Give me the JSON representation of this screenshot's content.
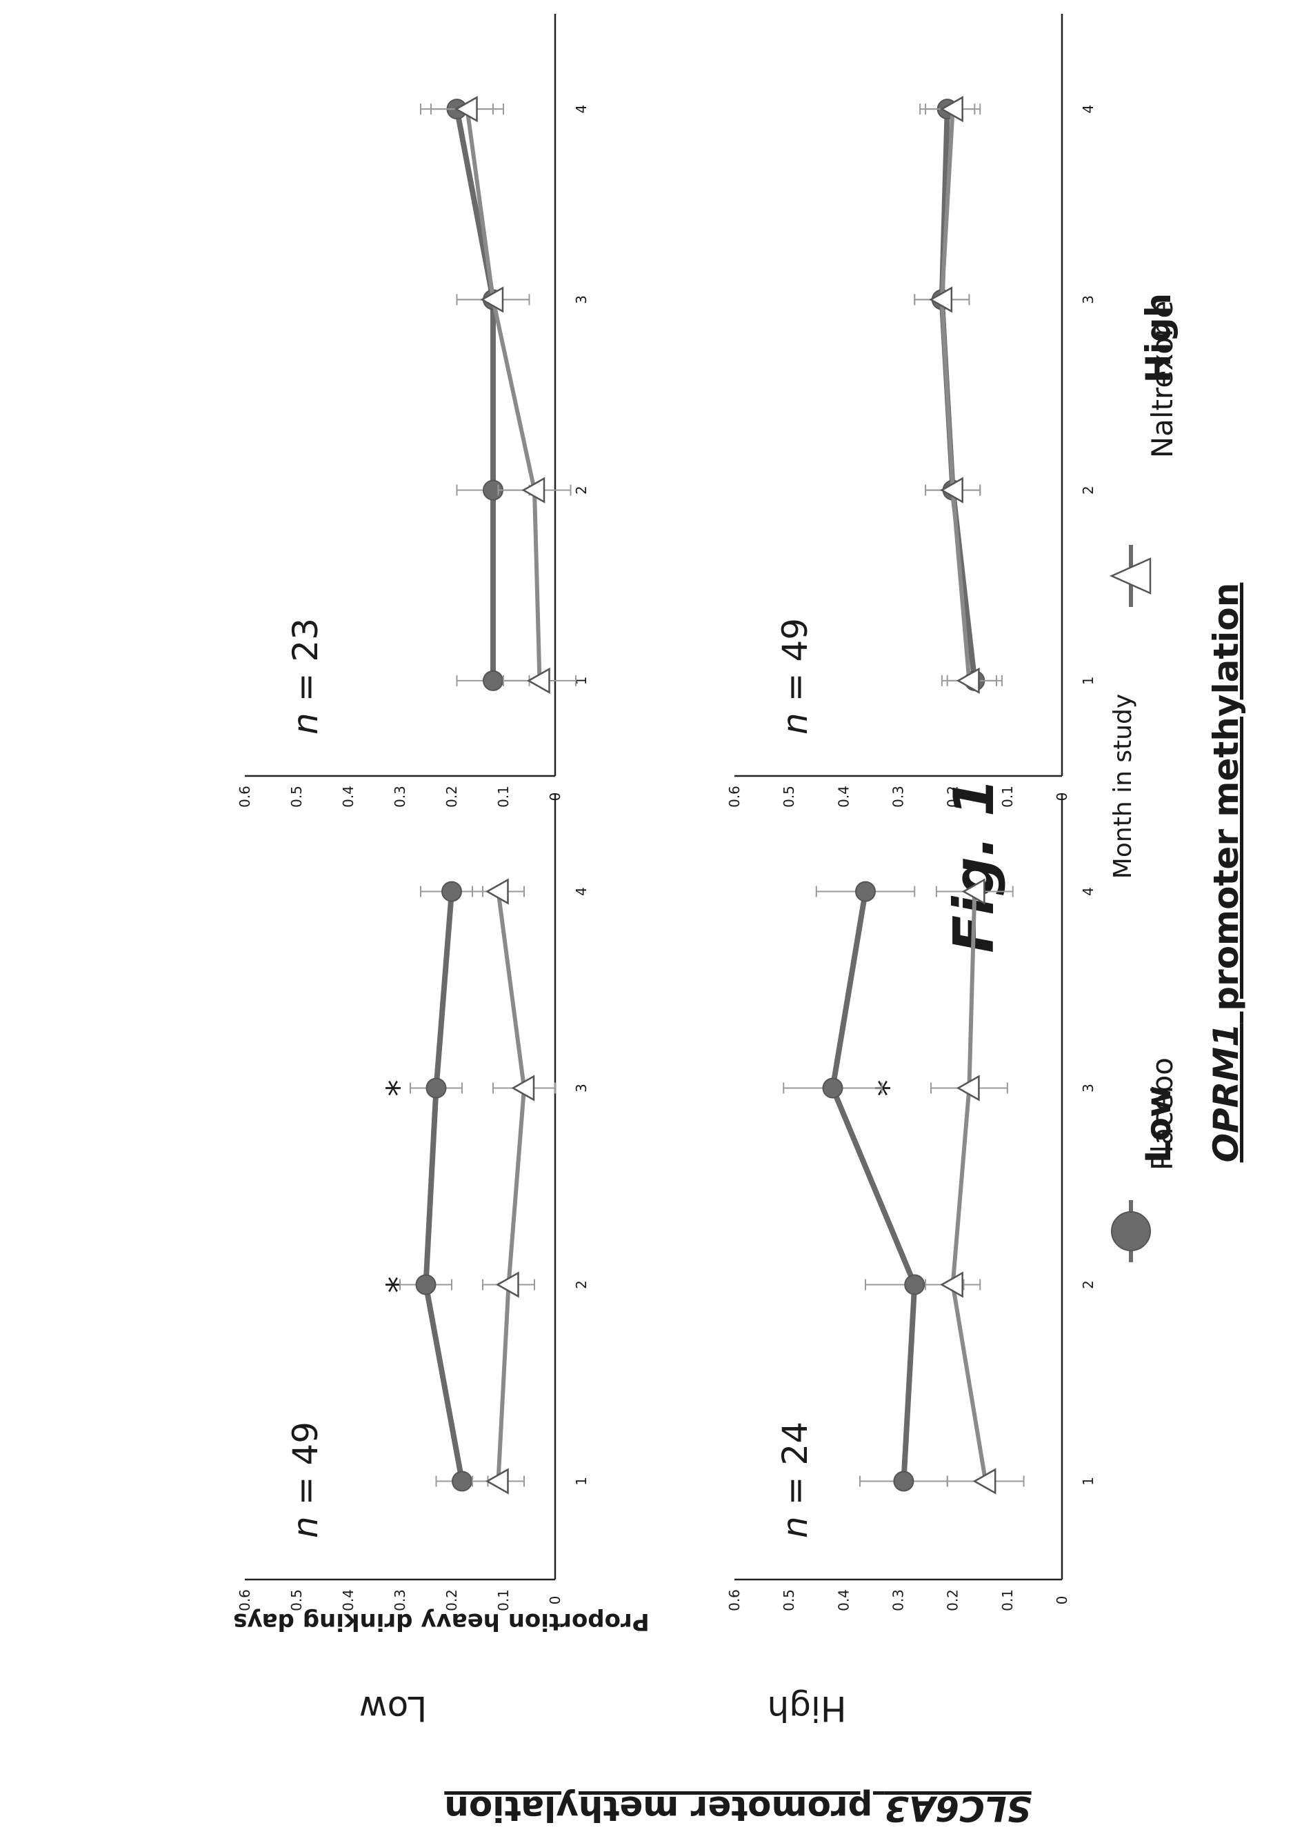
{
  "figure_label": "Fig. 1",
  "top_heading": {
    "italic": "OPRM1",
    "rest": " promoter methylation"
  },
  "column_labels": [
    "Low",
    "High"
  ],
  "side_heading": {
    "italic": "SLC6A3",
    "rest": " promoter  methylation"
  },
  "row_labels": [
    "Low",
    "High"
  ],
  "y_axis_label": "Proportion heavy drinking days",
  "x_axis_label": "Month in study",
  "legend": [
    {
      "name": "Placebo",
      "marker": "filled-circle"
    },
    {
      "name": "Naltrexone",
      "marker": "open-triangle"
    }
  ],
  "colors": {
    "placebo": "#6b6b6b",
    "naltrexone": "#ffffff",
    "error_bar": "#9a9a9a"
  },
  "chart_data": [
    {
      "type": "line",
      "panel": "OPRM1 Low / SLC6A3 Low",
      "annotation": "n = 49",
      "x": [
        1,
        2,
        3,
        4
      ],
      "x_ticks": [
        "1",
        "2",
        "3",
        "4"
      ],
      "ylim": [
        0,
        0.6
      ],
      "y_ticks": [
        "0",
        "0.1",
        "0.2",
        "0.3",
        "0.4",
        "0.5",
        "0.6"
      ],
      "significance_months": [
        2,
        3
      ],
      "significance_symbol": "*",
      "series": [
        {
          "name": "Placebo",
          "values": [
            0.18,
            0.25,
            0.23,
            0.2
          ],
          "err": [
            0.05,
            0.05,
            0.05,
            0.06
          ]
        },
        {
          "name": "Naltrexone",
          "values": [
            0.11,
            0.09,
            0.06,
            0.11
          ],
          "err": [
            0.05,
            0.05,
            0.06,
            0.05
          ]
        }
      ]
    },
    {
      "type": "line",
      "panel": "OPRM1 High / SLC6A3 Low",
      "annotation": "n = 23",
      "x": [
        1,
        2,
        3,
        4
      ],
      "x_ticks": [
        "1",
        "2",
        "3",
        "4"
      ],
      "ylim": [
        0,
        0.6
      ],
      "y_ticks": [
        "0",
        "0.1",
        "0.2",
        "0.3",
        "0.4",
        "0.5",
        "0.6"
      ],
      "significance_months": [],
      "significance_symbol": "*",
      "series": [
        {
          "name": "Placebo",
          "values": [
            0.12,
            0.12,
            0.12,
            0.19
          ],
          "err": [
            0.07,
            0.07,
            0.07,
            0.07
          ]
        },
        {
          "name": "Naltrexone",
          "values": [
            0.03,
            0.04,
            0.12,
            0.17
          ],
          "err": [
            0.07,
            0.07,
            0.07,
            0.07
          ]
        }
      ]
    },
    {
      "type": "line",
      "panel": "OPRM1 Low / SLC6A3 High",
      "annotation": "n = 24",
      "x": [
        1,
        2,
        3,
        4
      ],
      "x_ticks": [
        "1",
        "2",
        "3",
        "4"
      ],
      "ylim": [
        0,
        0.6
      ],
      "y_ticks": [
        "0",
        "0.1",
        "0.2",
        "0.3",
        "0.4",
        "0.5",
        "0.6"
      ],
      "significance_months": [
        3
      ],
      "significance_symbol": "*",
      "series": [
        {
          "name": "Placebo",
          "values": [
            0.29,
            0.27,
            0.42,
            0.36
          ],
          "err": [
            0.08,
            0.09,
            0.09,
            0.09
          ]
        },
        {
          "name": "Naltrexone",
          "values": [
            0.14,
            0.2,
            0.17,
            0.16
          ],
          "err": [
            0.07,
            0.05,
            0.07,
            0.07
          ]
        }
      ]
    },
    {
      "type": "line",
      "panel": "OPRM1 High / SLC6A3 High",
      "annotation": "n = 49",
      "x": [
        1,
        2,
        3,
        4
      ],
      "x_ticks": [
        "1",
        "2",
        "3",
        "4"
      ],
      "ylim": [
        0,
        0.6
      ],
      "y_ticks": [
        "0",
        "0.1",
        "0.2",
        "0.3",
        "0.4",
        "0.5",
        "0.6"
      ],
      "significance_months": [],
      "significance_symbol": "*",
      "series": [
        {
          "name": "Placebo",
          "values": [
            0.16,
            0.2,
            0.22,
            0.21
          ],
          "err": [
            0.05,
            0.05,
            0.05,
            0.05
          ]
        },
        {
          "name": "Naltrexone",
          "values": [
            0.17,
            0.2,
            0.22,
            0.2
          ],
          "err": [
            0.05,
            0.05,
            0.05,
            0.05
          ]
        }
      ]
    }
  ]
}
